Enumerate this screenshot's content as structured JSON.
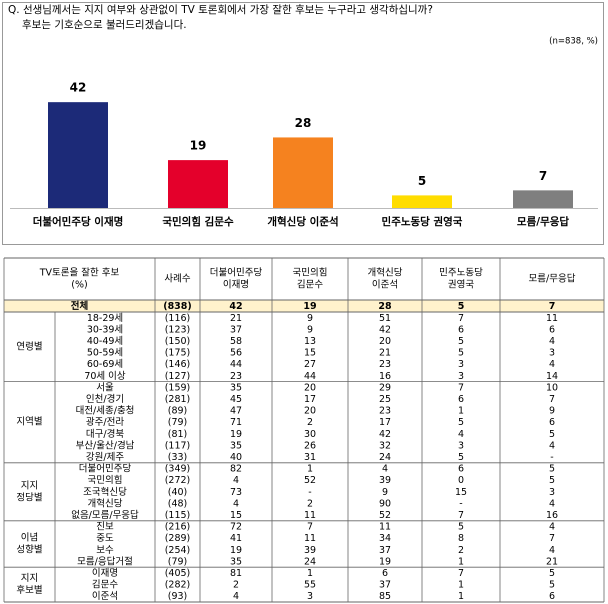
{
  "chart_data": {
    "type": "bar",
    "title": [
      "Q. 선생님께서는 지지 여부와 상관없이 TV 토론회에서 가장 잘한 후보는 누구라고 생각하십니까?",
      "후보는 기호순으로 불러드리겠습니다."
    ],
    "note": "(n=838, %)",
    "categories": [
      "더불어민주당 이재명",
      "국민의힘 김문수",
      "개혁신당 이준석",
      "민주노동당 권영국",
      "모름/무응답"
    ],
    "values": [
      42,
      19,
      28,
      5,
      7
    ],
    "colors": [
      "#1c2a78",
      "#e4002b",
      "#f5821f",
      "#ffdd00",
      "#7f7f7f"
    ]
  },
  "table": {
    "header": [
      [
        "TV토론을 잘한 후보",
        "(%)"
      ],
      [
        "사례수"
      ],
      [
        "더불어민주당",
        "이재명"
      ],
      [
        "국민의힘",
        "김문수"
      ],
      [
        "개혁신당",
        "이준석"
      ],
      [
        "민주노동당",
        "권영국"
      ],
      [
        "모름/무응답"
      ]
    ],
    "total": [
      "전체",
      "(838)",
      "42",
      "19",
      "28",
      "5",
      "7"
    ],
    "groups": [
      {
        "label": [
          "연령별"
        ],
        "rows": [
          [
            "18-29세",
            "(116)",
            "21",
            "9",
            "51",
            "7",
            "11"
          ],
          [
            "30-39세",
            "(123)",
            "37",
            "9",
            "42",
            "6",
            "6"
          ],
          [
            "40-49세",
            "(150)",
            "58",
            "13",
            "20",
            "5",
            "4"
          ],
          [
            "50-59세",
            "(175)",
            "56",
            "15",
            "21",
            "5",
            "3"
          ],
          [
            "60-69세",
            "(146)",
            "44",
            "27",
            "23",
            "3",
            "4"
          ],
          [
            "70세 이상",
            "(127)",
            "23",
            "44",
            "16",
            "3",
            "14"
          ]
        ]
      },
      {
        "label": [
          "지역별"
        ],
        "rows": [
          [
            "서울",
            "(159)",
            "35",
            "20",
            "29",
            "7",
            "10"
          ],
          [
            "인천/경기",
            "(281)",
            "45",
            "17",
            "25",
            "6",
            "7"
          ],
          [
            "대전/세종/충청",
            "(89)",
            "47",
            "20",
            "23",
            "1",
            "9"
          ],
          [
            "광주/전라",
            "(79)",
            "71",
            "2",
            "17",
            "5",
            "6"
          ],
          [
            "대구/경북",
            "(81)",
            "19",
            "30",
            "42",
            "4",
            "5"
          ],
          [
            "부산/울산/경남",
            "(117)",
            "35",
            "26",
            "32",
            "3",
            "4"
          ],
          [
            "강원/제주",
            "(33)",
            "40",
            "31",
            "24",
            "5",
            "-"
          ]
        ]
      },
      {
        "label": [
          "지지",
          "정당별"
        ],
        "rows": [
          [
            "더불어민주당",
            "(349)",
            "82",
            "1",
            "4",
            "6",
            "5"
          ],
          [
            "국민의힘",
            "(272)",
            "4",
            "52",
            "39",
            "0",
            "5"
          ],
          [
            "조국혁신당",
            "(40)",
            "73",
            "-",
            "9",
            "15",
            "3"
          ],
          [
            "개혁신당",
            "(48)",
            "4",
            "2",
            "90",
            "-",
            "4"
          ],
          [
            "없음/모름/무응답",
            "(115)",
            "15",
            "11",
            "52",
            "7",
            "16"
          ]
        ]
      },
      {
        "label": [
          "이념",
          "성향별"
        ],
        "rows": [
          [
            "진보",
            "(216)",
            "72",
            "7",
            "11",
            "5",
            "4"
          ],
          [
            "중도",
            "(289)",
            "41",
            "11",
            "34",
            "8",
            "7"
          ],
          [
            "보수",
            "(254)",
            "19",
            "39",
            "37",
            "2",
            "4"
          ],
          [
            "모름/응답거절",
            "(79)",
            "35",
            "24",
            "19",
            "1",
            "21"
          ]
        ]
      },
      {
        "label": [
          "지지",
          "후보별"
        ],
        "rows": [
          [
            "이재명",
            "(405)",
            "81",
            "1",
            "6",
            "7",
            "5"
          ],
          [
            "김문수",
            "(282)",
            "2",
            "55",
            "37",
            "1",
            "5"
          ],
          [
            "이준석",
            "(93)",
            "4",
            "3",
            "85",
            "1",
            "6"
          ]
        ]
      }
    ]
  }
}
